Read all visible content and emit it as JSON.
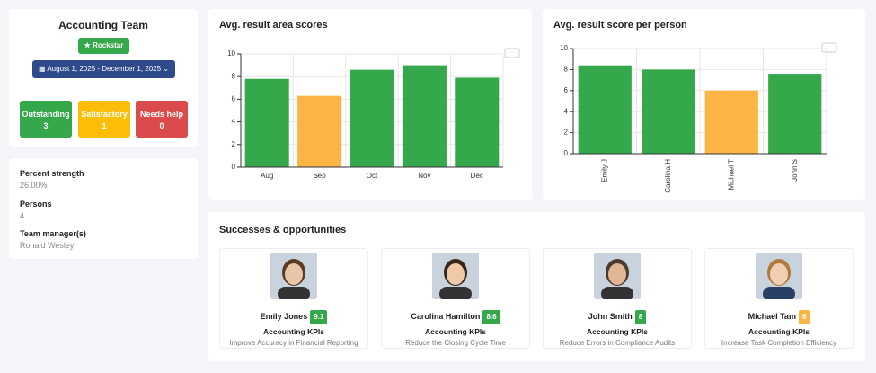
{
  "team": {
    "title": "Accounting Team",
    "badge": "Rockstar",
    "date_range": "August 1, 2025 - December 1, 2025",
    "statuses": [
      {
        "label": "Outstanding",
        "count": 3
      },
      {
        "label": "Satisfactory",
        "count": 1
      },
      {
        "label": "Needs help",
        "count": 0
      }
    ]
  },
  "details": [
    {
      "label": "Percent strength",
      "value": "26.00%"
    },
    {
      "label": "Persons",
      "value": "4"
    },
    {
      "label": "Team manager(s)",
      "value": "Ronald Wesley"
    }
  ],
  "chart_data": [
    {
      "type": "bar",
      "title": "Avg. result area scores",
      "categories": [
        "Aug",
        "Sep",
        "Oct",
        "Nov",
        "Dec"
      ],
      "values": [
        7.8,
        6.3,
        8.6,
        9.0,
        7.9
      ],
      "colors": [
        "#34a84a",
        "#fbb545",
        "#34a84a",
        "#34a84a",
        "#34a84a"
      ],
      "ylim": [
        0,
        10
      ],
      "yticks": [
        0,
        2,
        4,
        6,
        8,
        10
      ],
      "grid": true
    },
    {
      "type": "bar",
      "title": "Avg. result score per person",
      "categories": [
        "Emily J",
        "Carolina H",
        "Michael T",
        "John S"
      ],
      "values": [
        8.4,
        8.0,
        6.0,
        7.6
      ],
      "colors": [
        "#34a84a",
        "#34a84a",
        "#fbb545",
        "#34a84a"
      ],
      "ylim": [
        0,
        10
      ],
      "yticks": [
        0,
        2,
        4,
        6,
        8,
        10
      ],
      "grid": true,
      "rotate_labels": true
    }
  ],
  "successes": {
    "title": "Successes & opportunities",
    "people": [
      {
        "name": "Emily Jones",
        "score": 9.1,
        "kpi": "Accounting KPIs",
        "goal": "Improve Accuracy in Financial Reporting"
      },
      {
        "name": "Carolina Hamilton",
        "score": 8.6,
        "kpi": "Accounting KPIs",
        "goal": "Reduce the Closing Cycle Time"
      },
      {
        "name": "John Smith",
        "score": 8,
        "kpi": "Accounting KPIs",
        "goal": "Reduce Errors in Compliance Audits"
      },
      {
        "name": "Michael Tam",
        "score": 6,
        "kpi": "Accounting KPIs",
        "goal": "Increase Task Completion Efficiency"
      }
    ]
  }
}
